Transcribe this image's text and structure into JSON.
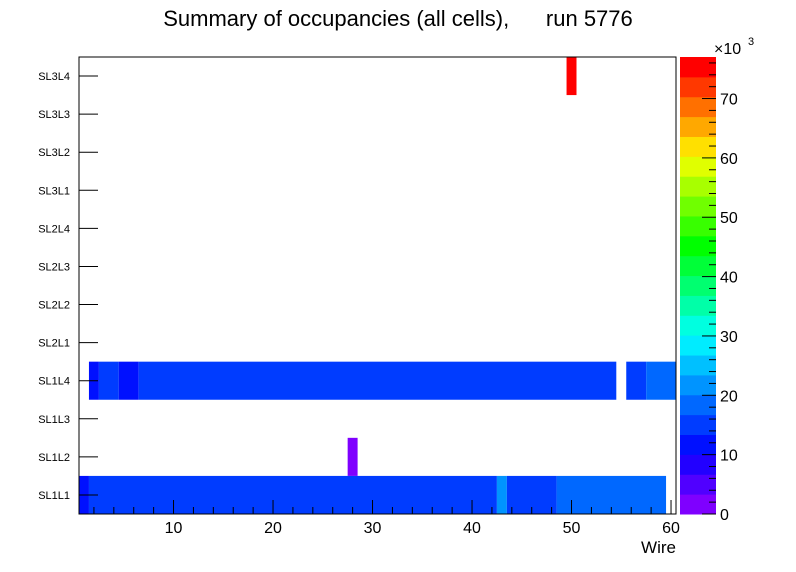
{
  "title": "Summary of occupancies (all cells),      run 5776",
  "chart_data": {
    "type": "heatmap",
    "title": "Summary of occupancies (all cells),      run 5776",
    "xlabel": "Wire",
    "ylabel": "",
    "xlim": [
      0.5,
      60.5
    ],
    "xticks": [
      10,
      20,
      30,
      40,
      50,
      60
    ],
    "xtick_labels": [
      "10",
      "20",
      "30",
      "40",
      "50",
      "60"
    ],
    "layers": [
      "SL1L1",
      "SL1L2",
      "SL1L3",
      "SL1L4",
      "SL2L1",
      "SL2L2",
      "SL2L3",
      "SL2L4",
      "SL3L1",
      "SL3L2",
      "SL3L3",
      "SL3L4"
    ],
    "zlim": [
      0,
      77000
    ],
    "z_exponent_label": "×10",
    "z_exponent_power": "3",
    "zticks": [
      0,
      10,
      20,
      30,
      40,
      50,
      60,
      70
    ],
    "palette": [
      "#7f00ff",
      "#5000ff",
      "#2200ff",
      "#0010ff",
      "#003cff",
      "#0068ff",
      "#0094ff",
      "#00c0ff",
      "#00ecff",
      "#00ffe0",
      "#00ffa8",
      "#00ff70",
      "#00ff38",
      "#00ff00",
      "#38ff00",
      "#70ff00",
      "#a8ff00",
      "#e0ff00",
      "#ffe000",
      "#ffa800",
      "#ff7000",
      "#ff3800",
      "#ff0000"
    ],
    "segments": [
      {
        "layer": "SL1L1",
        "from": 0.5,
        "to": 1.5,
        "value": 12000
      },
      {
        "layer": "SL1L1",
        "from": 1.5,
        "to": 42.5,
        "value": 15000
      },
      {
        "layer": "SL1L1",
        "from": 42.5,
        "to": 43.5,
        "value": 21000
      },
      {
        "layer": "SL1L1",
        "from": 43.5,
        "to": 48.5,
        "value": 15000
      },
      {
        "layer": "SL1L1",
        "from": 48.5,
        "to": 59.5,
        "value": 20000
      },
      {
        "layer": "SL1L2",
        "from": 27.5,
        "to": 28.5,
        "value": 3000
      },
      {
        "layer": "SL1L4",
        "from": 1.5,
        "to": 2.5,
        "value": 12000
      },
      {
        "layer": "SL1L4",
        "from": 2.5,
        "to": 4.5,
        "value": 15000
      },
      {
        "layer": "SL1L4",
        "from": 4.5,
        "to": 6.5,
        "value": 12000
      },
      {
        "layer": "SL1L4",
        "from": 6.5,
        "to": 54.5,
        "value": 15000
      },
      {
        "layer": "SL1L4",
        "from": 55.5,
        "to": 57.5,
        "value": 15000
      },
      {
        "layer": "SL1L4",
        "from": 57.5,
        "to": 60.5,
        "value": 17000
      },
      {
        "layer": "SL3L4",
        "from": 49.5,
        "to": 50.5,
        "value": 75000
      }
    ]
  }
}
